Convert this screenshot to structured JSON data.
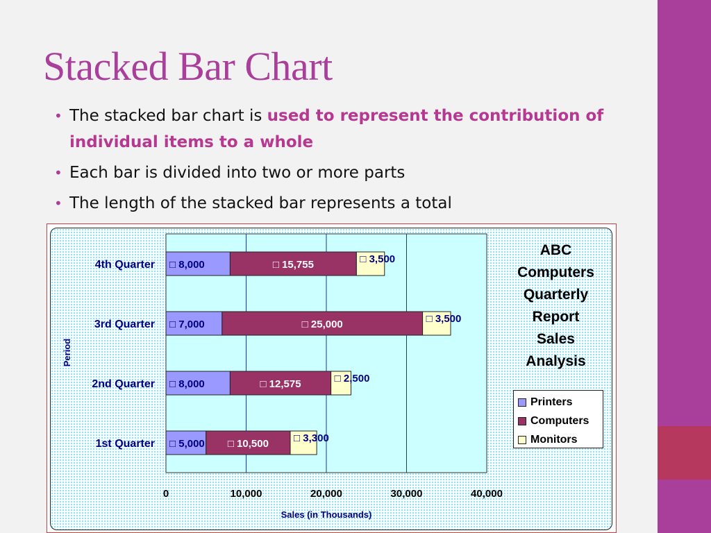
{
  "slide": {
    "title": "Stacked Bar Chart",
    "bullets": [
      {
        "text": "The stacked bar chart is ",
        "highlight": "used to represent the contribution of individual items to a whole"
      },
      {
        "text": "Each bar is divided into two or more parts"
      },
      {
        "text": "The length of the stacked bar represents a total"
      }
    ],
    "colors": {
      "accent": "#a93f9a",
      "accent_secondary": "#b7385e",
      "highlight_text": "#b53891"
    }
  },
  "chart_data": {
    "type": "bar",
    "orientation": "horizontal",
    "stacked": true,
    "title_lines": [
      "ABC",
      "Computers",
      "Quarterly",
      "Report",
      "Sales",
      "Analysis"
    ],
    "xlabel": "Sales (in Thousands)",
    "ylabel": "Period",
    "xlim": [
      0,
      40000
    ],
    "x_ticks": [
      "0",
      "10,000",
      "20,000",
      "30,000",
      "40,000"
    ],
    "categories": [
      "1st Quarter",
      "2nd Quarter",
      "3rd Quarter",
      "4th Quarter"
    ],
    "series": [
      {
        "name": "Printers",
        "color": "#9999ff",
        "values": [
          5000,
          8000,
          7000,
          8000
        ],
        "labels": [
          "5,000",
          "8,000",
          "7,000",
          "8,000"
        ]
      },
      {
        "name": "Computers",
        "color": "#993366",
        "values": [
          10500,
          12575,
          25000,
          15755
        ],
        "labels": [
          "10,500",
          "12,575",
          "25,000",
          "15,755"
        ]
      },
      {
        "name": "Monitors",
        "color": "#ffffcc",
        "values": [
          3300,
          2500,
          3500,
          3500
        ],
        "labels": [
          "3,300",
          "2,500",
          "3,500",
          "3,500"
        ]
      }
    ],
    "label_marker": "□",
    "legend_position": "right",
    "grid": {
      "vertical": true,
      "horizontal": false,
      "color": "#1a3a9c"
    },
    "plot_background": "#ccffff",
    "data_label_colors": {
      "Printers": "#000080",
      "Computers": "#ffffff",
      "Monitors": "#000080"
    }
  }
}
